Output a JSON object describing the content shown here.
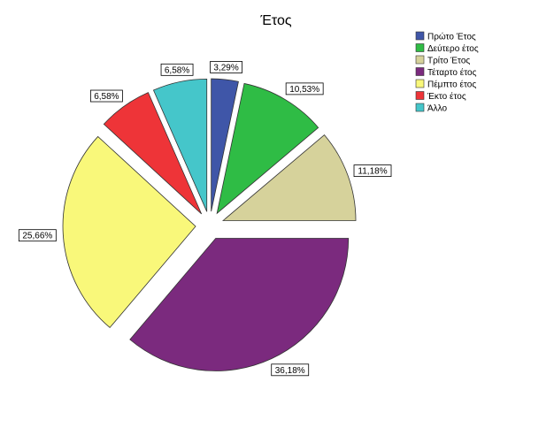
{
  "chart_data": {
    "type": "pie",
    "title": "Έτος",
    "series": [
      {
        "name": "Πρώτο Έτος",
        "value": 3.29,
        "label": "3,29%",
        "color": "#3F56A8"
      },
      {
        "name": "Δεύτερο έτος",
        "value": 10.53,
        "label": "10,53%",
        "color": "#2FBC45"
      },
      {
        "name": "Τρίτο Έτος",
        "value": 11.18,
        "label": "11,18%",
        "color": "#D6D29B"
      },
      {
        "name": "Τέταρτο έτος",
        "value": 36.18,
        "label": "36,18%",
        "color": "#7B2A7E"
      },
      {
        "name": "Πέμπτο έτος",
        "value": 25.66,
        "label": "25,66%",
        "color": "#F9F87A"
      },
      {
        "name": "Έκτο έτος",
        "value": 6.58,
        "label": "6,58%",
        "color": "#EE3438"
      },
      {
        "name": "Άλλο",
        "value": 6.58,
        "label": "6,58%",
        "color": "#45C6CA"
      }
    ],
    "legend_position": "top-right",
    "exploded": true,
    "start_angle": "12 o'clock",
    "direction": "clockwise"
  }
}
